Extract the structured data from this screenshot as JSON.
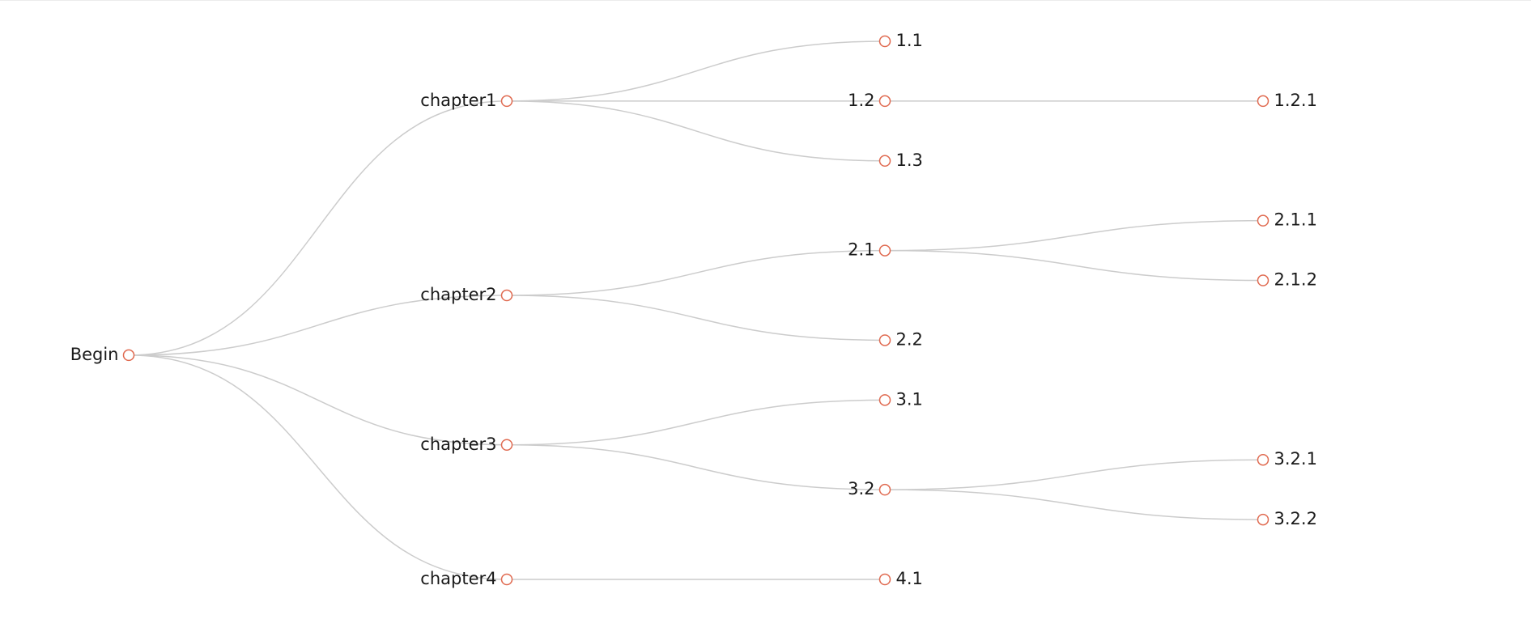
{
  "tree": {
    "label": "Begin",
    "children": [
      {
        "label": "chapter1",
        "children": [
          {
            "label": "1.1",
            "children": []
          },
          {
            "label": "1.2",
            "children": [
              {
                "label": "1.2.1",
                "children": []
              }
            ]
          },
          {
            "label": "1.3",
            "children": []
          }
        ]
      },
      {
        "label": "chapter2",
        "children": [
          {
            "label": "2.1",
            "children": [
              {
                "label": "2.1.1",
                "children": []
              },
              {
                "label": "2.1.2",
                "children": []
              }
            ]
          },
          {
            "label": "2.2",
            "children": []
          }
        ]
      },
      {
        "label": "chapter3",
        "children": [
          {
            "label": "3.1",
            "children": []
          },
          {
            "label": "3.2",
            "children": [
              {
                "label": "3.2.1",
                "children": []
              },
              {
                "label": "3.2.2",
                "children": []
              }
            ]
          }
        ]
      },
      {
        "label": "chapter4",
        "children": [
          {
            "label": "4.1",
            "children": []
          }
        ]
      }
    ]
  },
  "colors": {
    "link": "#cccccc",
    "node_stroke": "#e06a50",
    "node_fill": "#ffffff",
    "label": "#1a1a1a"
  }
}
